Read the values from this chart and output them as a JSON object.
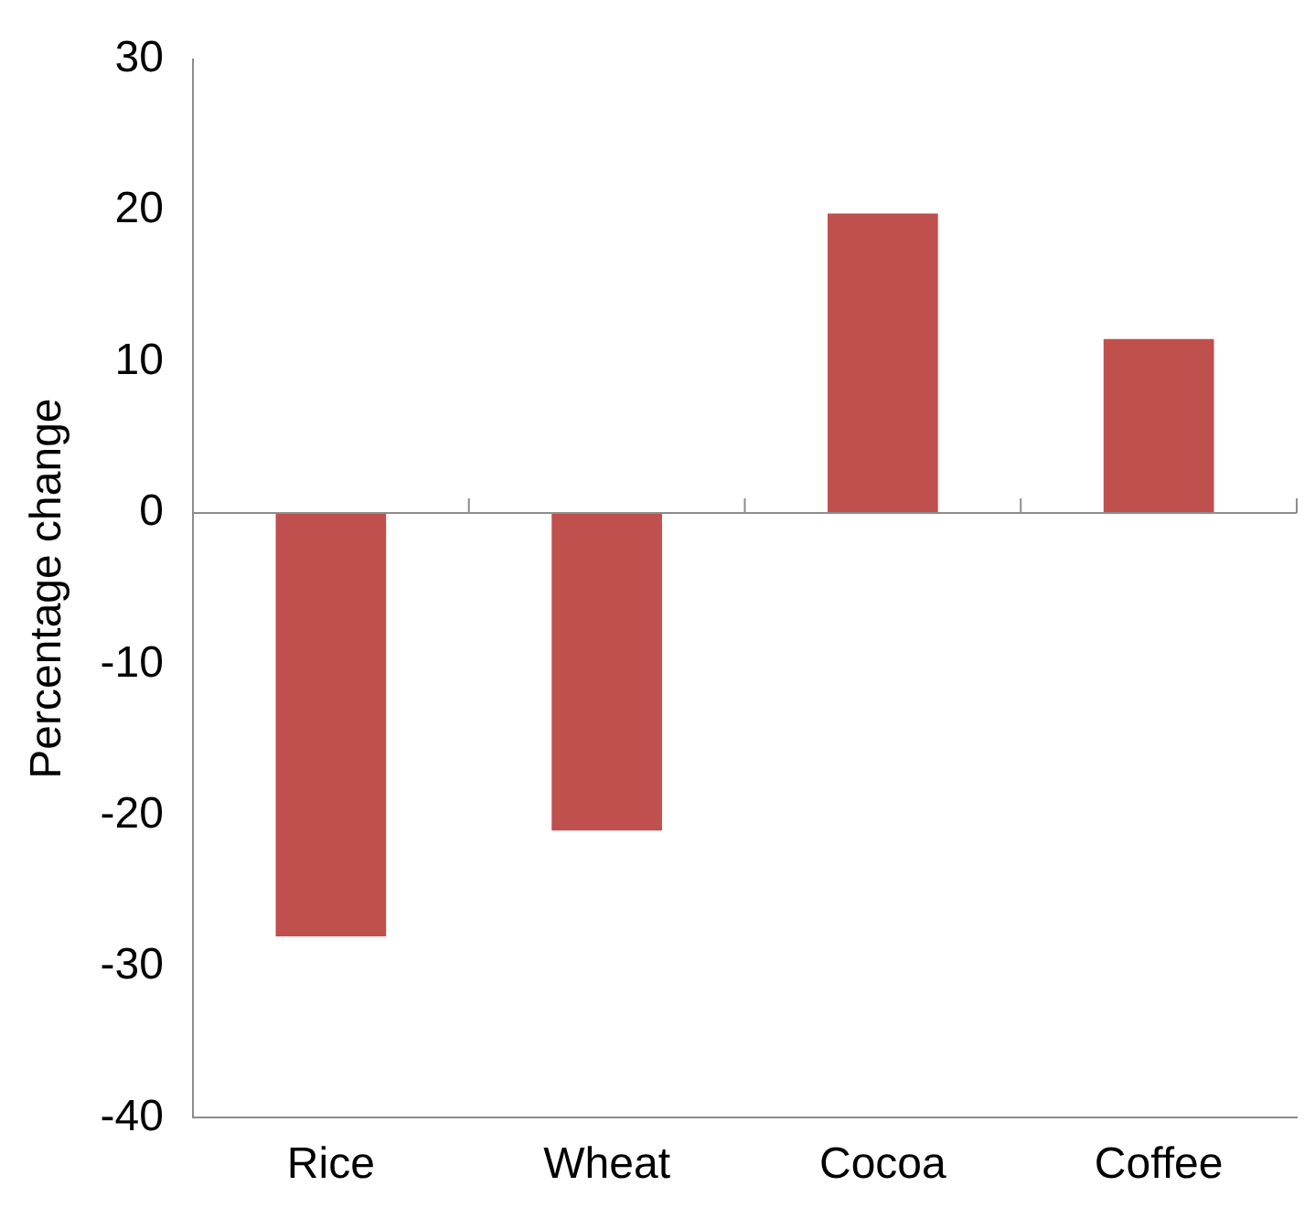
{
  "chart_data": {
    "type": "bar",
    "ylabel": "Percentage change",
    "categories": [
      "Rice",
      "Wheat",
      "Cocoa",
      "Coffee"
    ],
    "values": [
      -28,
      -21,
      19.8,
      11.5
    ],
    "color": "#c0504d",
    "ylim": [
      -40,
      30
    ],
    "yticks": [
      -40,
      -30,
      -20,
      -10,
      0,
      10,
      20,
      30
    ],
    "legend": false
  }
}
